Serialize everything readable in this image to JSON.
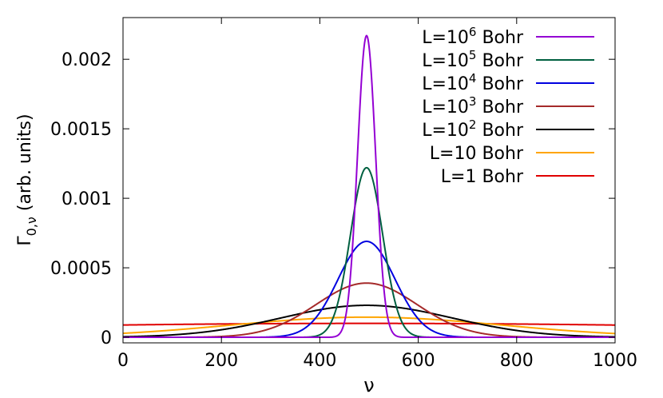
{
  "chart_data": {
    "type": "line",
    "title": "",
    "xlabel": "ν",
    "ylabel_main": "Γ",
    "ylabel_sub": "0,ν",
    "ylabel_rest": " (arb. units)",
    "xlim": [
      0,
      1000
    ],
    "ylim": [
      -4e-05,
      0.0023
    ],
    "xticks": [
      {
        "v": 0,
        "label": "0"
      },
      {
        "v": 200,
        "label": "200"
      },
      {
        "v": 400,
        "label": "400"
      },
      {
        "v": 600,
        "label": "600"
      },
      {
        "v": 800,
        "label": "800"
      },
      {
        "v": 1000,
        "label": "1000"
      }
    ],
    "yticks": [
      {
        "v": 0,
        "label": "0"
      },
      {
        "v": 0.0005,
        "label": "0.0005"
      },
      {
        "v": 0.001,
        "label": "0.001"
      },
      {
        "v": 0.0015,
        "label": "0.0015"
      },
      {
        "v": 0.002,
        "label": "0.002"
      }
    ],
    "grid": false,
    "legend_position": "top-right",
    "center": 495,
    "series": [
      {
        "name_base": "L=10",
        "name_exp": "6",
        "name_tail": " Bohr",
        "color": "#9400d3",
        "peak": 0.00217,
        "sigma": 18.4
      },
      {
        "name_base": "L=10",
        "name_exp": "5",
        "name_tail": " Bohr",
        "color": "#006040",
        "peak": 0.00122,
        "sigma": 32.7
      },
      {
        "name_base": "L=10",
        "name_exp": "4",
        "name_tail": " Bohr",
        "color": "#0000e0",
        "peak": 0.00069,
        "sigma": 57.8
      },
      {
        "name_base": "L=10",
        "name_exp": "3",
        "name_tail": " Bohr",
        "color": "#a52a2a",
        "peak": 0.00039,
        "sigma": 102.3
      },
      {
        "name_base": "L=10",
        "name_exp": "2",
        "name_tail": " Bohr",
        "color": "#000000",
        "peak": 0.00023,
        "sigma": 173.5
      },
      {
        "name_base": "L=10",
        "name_exp": "",
        "name_tail": " Bohr",
        "color": "#ffa500",
        "peak": 0.000145,
        "sigma": 275
      },
      {
        "name_base": "L=1",
        "name_exp": "",
        "name_tail": " Bohr",
        "color": "#e00000",
        "peak": 0.0001,
        "sigma": 1000
      }
    ]
  }
}
